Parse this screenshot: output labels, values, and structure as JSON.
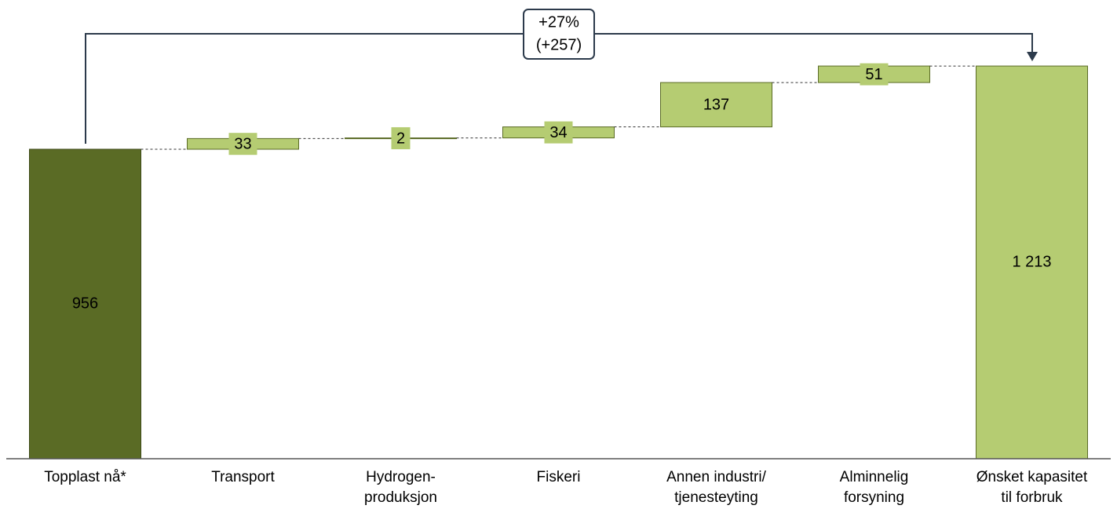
{
  "chart_data": {
    "type": "waterfall",
    "categories": [
      [
        "Topplast nå*"
      ],
      [
        "Transport"
      ],
      [
        "Hydrogen-",
        "produksjon"
      ],
      [
        "Fiskeri"
      ],
      [
        "Annen industri/",
        "tjenesteyting"
      ],
      [
        "Alminnelig",
        "forsyning"
      ],
      [
        "Ønsket kapasitet",
        "til forbruk"
      ]
    ],
    "values": [
      956,
      33,
      2,
      34,
      137,
      51,
      1213
    ],
    "value_labels": [
      "956",
      "33",
      "2",
      "34",
      "137",
      "51",
      "1 213"
    ],
    "measures": [
      "total",
      "relative",
      "relative",
      "relative",
      "relative",
      "relative",
      "total"
    ],
    "colors": {
      "start": "#5a6b25",
      "step": "#b5cc72",
      "end": "#b5cc72"
    },
    "annotation": [
      "+27%",
      "(+257)"
    ],
    "ylim": [
      0,
      1400
    ]
  }
}
